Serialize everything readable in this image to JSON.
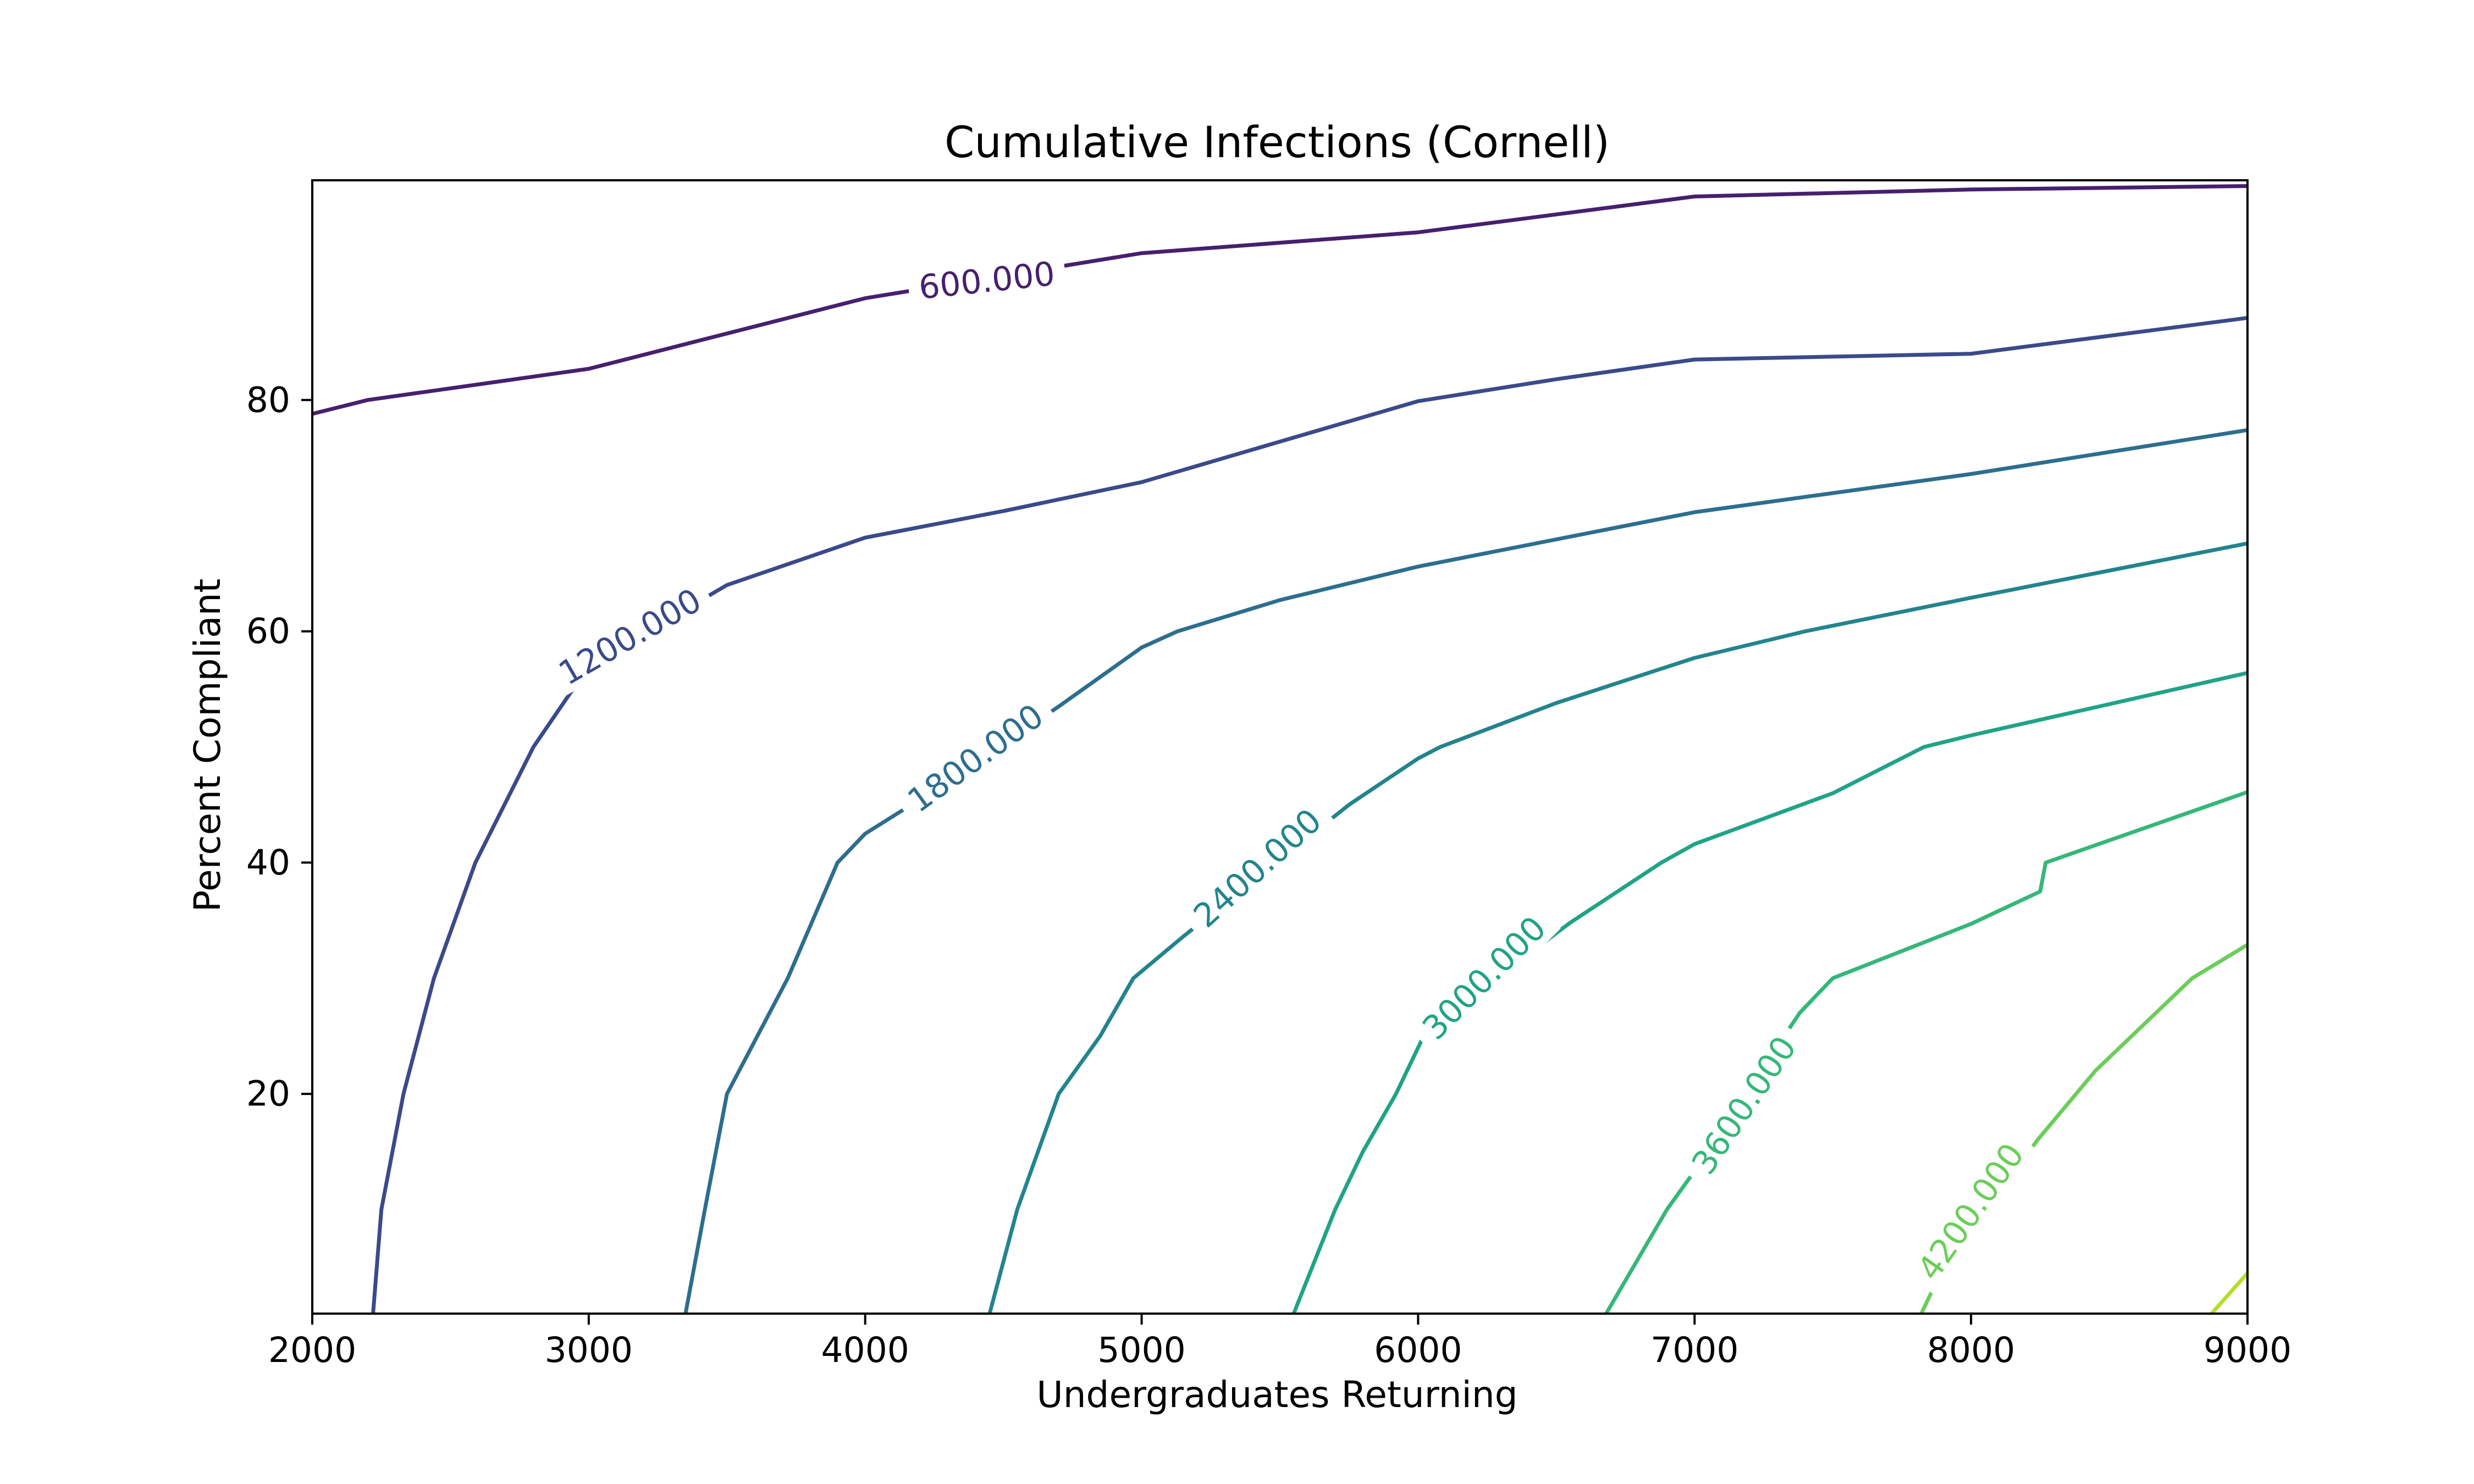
{
  "chart_data": {
    "type": "contour",
    "title": "Cumulative Infections (Cornell)",
    "xlabel": "Undergraduates Returning",
    "ylabel": "Percent Compliant",
    "xlim": [
      2000,
      9000
    ],
    "ylim": [
      1,
      99
    ],
    "xticks": [
      2000,
      3000,
      4000,
      5000,
      6000,
      7000,
      8000,
      9000
    ],
    "yticks": [
      20,
      40,
      60,
      80
    ],
    "grid": false,
    "levels": [
      {
        "level": 600,
        "label": "600.000",
        "color": "#46206e",
        "label_at": [
          4440,
          90.3
        ],
        "label_rotation_deg": -6,
        "points": [
          [
            2000,
            78.8
          ],
          [
            2200,
            80
          ],
          [
            3000,
            82.7
          ],
          [
            4000,
            88.8
          ],
          [
            5000,
            92.7
          ],
          [
            6000,
            94.5
          ],
          [
            7000,
            97.6
          ],
          [
            8000,
            98.2
          ],
          [
            9000,
            98.5
          ]
        ]
      },
      {
        "level": 1200,
        "label": "1200.000",
        "color": "#3a4a8a",
        "label_at": [
          3150,
          59.5
        ],
        "label_rotation_deg": -30,
        "points": [
          [
            2220,
            1
          ],
          [
            2250,
            10
          ],
          [
            2330,
            20
          ],
          [
            2440,
            30
          ],
          [
            2590,
            40
          ],
          [
            2800,
            50
          ],
          [
            3000,
            57
          ],
          [
            3500,
            64
          ],
          [
            4000,
            68.1
          ],
          [
            4500,
            70.4
          ],
          [
            5000,
            72.9
          ],
          [
            5500,
            76.4
          ],
          [
            6000,
            79.9
          ],
          [
            6500,
            81.8
          ],
          [
            7000,
            83.5
          ],
          [
            8000,
            84
          ],
          [
            9000,
            87.1
          ]
        ]
      },
      {
        "level": 1800,
        "label": "1800.000",
        "color": "#2d6e8e",
        "label_at": [
          4400,
          49
        ],
        "label_rotation_deg": -36,
        "points": [
          [
            3350,
            1
          ],
          [
            3420,
            10
          ],
          [
            3500,
            20
          ],
          [
            3720,
            30
          ],
          [
            3900,
            40
          ],
          [
            4000,
            42.5
          ],
          [
            4300,
            47
          ],
          [
            4700,
            53.5
          ],
          [
            5000,
            58.6
          ],
          [
            5130,
            60
          ],
          [
            5500,
            62.7
          ],
          [
            6000,
            65.6
          ],
          [
            7000,
            70.3
          ],
          [
            8000,
            73.6
          ],
          [
            9000,
            77.4
          ]
        ]
      },
      {
        "level": 2400,
        "label": "2400.000",
        "color": "#23848d",
        "label_at": [
          5420,
          39.5
        ],
        "label_rotation_deg": -42,
        "points": [
          [
            4450,
            1
          ],
          [
            4550,
            10
          ],
          [
            4700,
            20
          ],
          [
            4850,
            25
          ],
          [
            4970,
            30
          ],
          [
            5150,
            33.6
          ],
          [
            5750,
            45
          ],
          [
            6000,
            49
          ],
          [
            6080,
            50
          ],
          [
            6500,
            53.8
          ],
          [
            7000,
            57.7
          ],
          [
            7400,
            60
          ],
          [
            8000,
            62.9
          ],
          [
            9000,
            67.6
          ]
        ]
      },
      {
        "level": 3000,
        "label": "3000.000",
        "color": "#20a386",
        "label_at": [
          6240,
          30
        ],
        "label_rotation_deg": -45,
        "points": [
          [
            5550,
            1
          ],
          [
            5700,
            10
          ],
          [
            5800,
            15
          ],
          [
            5920,
            20
          ],
          [
            6030,
            25.5
          ],
          [
            6550,
            34.8
          ],
          [
            6880,
            40
          ],
          [
            7000,
            41.6
          ],
          [
            7500,
            46
          ],
          [
            7830,
            50
          ],
          [
            8000,
            51
          ],
          [
            9000,
            56.4
          ]
        ]
      },
      {
        "level": 3600,
        "label": "3600.000",
        "color": "#35b779",
        "label_at": [
          7180,
          19
        ],
        "label_rotation_deg": -56,
        "points": [
          [
            6680,
            1
          ],
          [
            6900,
            10
          ],
          [
            6990,
            13
          ],
          [
            7380,
            27
          ],
          [
            7500,
            30
          ],
          [
            8000,
            34.7
          ],
          [
            8250,
            37.5
          ],
          [
            8270,
            40
          ],
          [
            9000,
            46.1
          ]
        ]
      },
      {
        "level": 4200,
        "label": "4200.000",
        "color": "#6ccd5a",
        "label_at": [
          8000,
          9.8
        ],
        "label_rotation_deg": -55,
        "points": [
          [
            7820,
            1
          ],
          [
            7880,
            4
          ],
          [
            8240,
            16
          ],
          [
            8450,
            22
          ],
          [
            8800,
            30
          ],
          [
            9000,
            32.9
          ]
        ]
      },
      {
        "level": 4800,
        "label": "",
        "color": "#b5de2b",
        "label_at": null,
        "label_rotation_deg": 0,
        "points": [
          [
            8870,
            1
          ],
          [
            9000,
            4.5
          ]
        ]
      }
    ]
  }
}
